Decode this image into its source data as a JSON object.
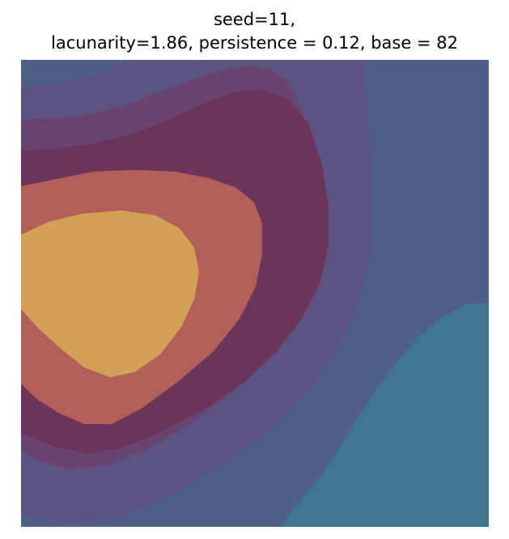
{
  "chart_data": {
    "type": "heatmap",
    "title_lines": [
      "seed=11,",
      "lacunarity=1.86, persistence = 0.12, base = 82"
    ],
    "xlabel": "",
    "ylabel": "",
    "grid": false,
    "legend": "none",
    "level_colors": [
      "#407590",
      "#4f5f8a",
      "#5b5381",
      "#674570",
      "#6b3459",
      "#b25f59",
      "#d2a155"
    ]
  }
}
